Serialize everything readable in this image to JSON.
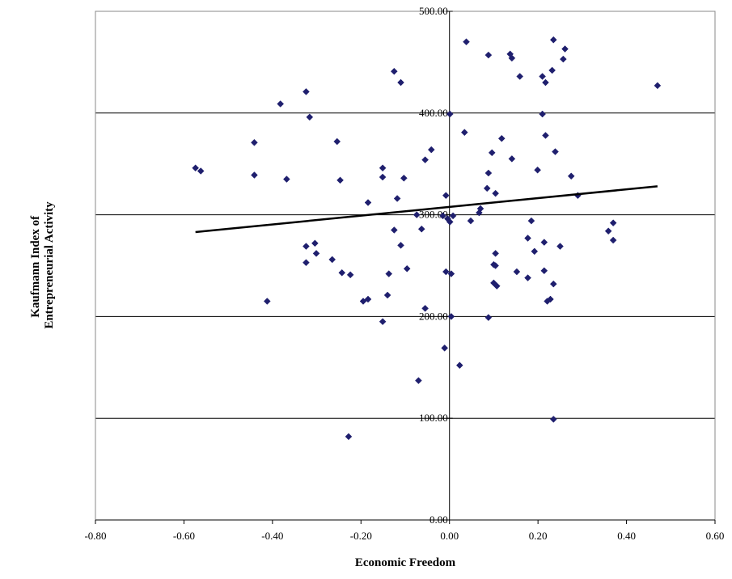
{
  "chart_data": {
    "type": "scatter",
    "xlabel": "Economic Freedom",
    "ylabel": [
      "Kaufmann Index of",
      "Entrepreneurial Activity"
    ],
    "xlim": [
      -0.8,
      0.6
    ],
    "ylim": [
      0,
      500
    ],
    "x_ticks": [
      -0.8,
      -0.6,
      -0.4,
      -0.2,
      0.0,
      0.2,
      0.4,
      0.6
    ],
    "x_tick_labels": [
      "-0.80",
      "-0.60",
      "-0.40",
      "-0.20",
      "0.00",
      "0.20",
      "0.40",
      "0.60"
    ],
    "y_ticks": [
      0,
      100,
      200,
      300,
      400,
      500
    ],
    "y_tick_labels": [
      "0.00",
      "100.00",
      "200.00",
      "300.00",
      "400.00",
      "500.00"
    ],
    "gridlines": "horizontal",
    "marker_color": "#1f1f6e",
    "trendline": {
      "type": "linear",
      "x": [
        -0.574,
        0.47
      ],
      "y": [
        283,
        328
      ],
      "color": "#000000"
    },
    "points": [
      [
        -0.574,
        346
      ],
      [
        -0.562,
        343
      ],
      [
        -0.441,
        371
      ],
      [
        -0.441,
        339
      ],
      [
        -0.412,
        215
      ],
      [
        -0.382,
        409
      ],
      [
        -0.368,
        335
      ],
      [
        -0.324,
        421
      ],
      [
        -0.324,
        269
      ],
      [
        -0.324,
        253
      ],
      [
        -0.316,
        396
      ],
      [
        -0.304,
        272
      ],
      [
        -0.301,
        262
      ],
      [
        -0.265,
        256
      ],
      [
        -0.254,
        372
      ],
      [
        -0.247,
        334
      ],
      [
        -0.243,
        243
      ],
      [
        -0.228,
        82
      ],
      [
        -0.224,
        241
      ],
      [
        -0.195,
        215
      ],
      [
        -0.184,
        312
      ],
      [
        -0.184,
        217
      ],
      [
        -0.151,
        337
      ],
      [
        -0.151,
        346
      ],
      [
        -0.151,
        195
      ],
      [
        -0.14,
        221
      ],
      [
        -0.137,
        242
      ],
      [
        -0.125,
        441
      ],
      [
        -0.125,
        285
      ],
      [
        -0.118,
        316
      ],
      [
        -0.11,
        430
      ],
      [
        -0.11,
        270
      ],
      [
        -0.103,
        336
      ],
      [
        -0.096,
        247
      ],
      [
        -0.074,
        300
      ],
      [
        -0.07,
        137
      ],
      [
        -0.063,
        286
      ],
      [
        -0.055,
        208
      ],
      [
        -0.055,
        354
      ],
      [
        -0.041,
        364
      ],
      [
        -0.015,
        299
      ],
      [
        -0.011,
        169
      ],
      [
        -0.008,
        244
      ],
      [
        -0.008,
        319
      ],
      [
        -0.004,
        296
      ],
      [
        0.001,
        399
      ],
      [
        0.001,
        293
      ],
      [
        0.004,
        242
      ],
      [
        0.004,
        200
      ],
      [
        0.008,
        299
      ],
      [
        0.023,
        152
      ],
      [
        0.034,
        381
      ],
      [
        0.038,
        470
      ],
      [
        0.048,
        294
      ],
      [
        0.067,
        302
      ],
      [
        0.07,
        306
      ],
      [
        0.085,
        326
      ],
      [
        0.088,
        341
      ],
      [
        0.088,
        199
      ],
      [
        0.088,
        457
      ],
      [
        0.096,
        361
      ],
      [
        0.1,
        251
      ],
      [
        0.1,
        233
      ],
      [
        0.104,
        321
      ],
      [
        0.104,
        262
      ],
      [
        0.104,
        250
      ],
      [
        0.107,
        230
      ],
      [
        0.118,
        375
      ],
      [
        0.137,
        458
      ],
      [
        0.141,
        355
      ],
      [
        0.141,
        454
      ],
      [
        0.152,
        244
      ],
      [
        0.159,
        436
      ],
      [
        0.177,
        277
      ],
      [
        0.177,
        238
      ],
      [
        0.185,
        294
      ],
      [
        0.192,
        264
      ],
      [
        0.199,
        344
      ],
      [
        0.21,
        399
      ],
      [
        0.21,
        436
      ],
      [
        0.214,
        273
      ],
      [
        0.214,
        245
      ],
      [
        0.217,
        430
      ],
      [
        0.217,
        378
      ],
      [
        0.221,
        215
      ],
      [
        0.228,
        217
      ],
      [
        0.232,
        442
      ],
      [
        0.235,
        472
      ],
      [
        0.235,
        232
      ],
      [
        0.235,
        99
      ],
      [
        0.239,
        362
      ],
      [
        0.25,
        269
      ],
      [
        0.257,
        453
      ],
      [
        0.261,
        463
      ],
      [
        0.275,
        338
      ],
      [
        0.29,
        319
      ],
      [
        0.359,
        284
      ],
      [
        0.37,
        292
      ],
      [
        0.37,
        275
      ],
      [
        0.47,
        427
      ]
    ]
  }
}
